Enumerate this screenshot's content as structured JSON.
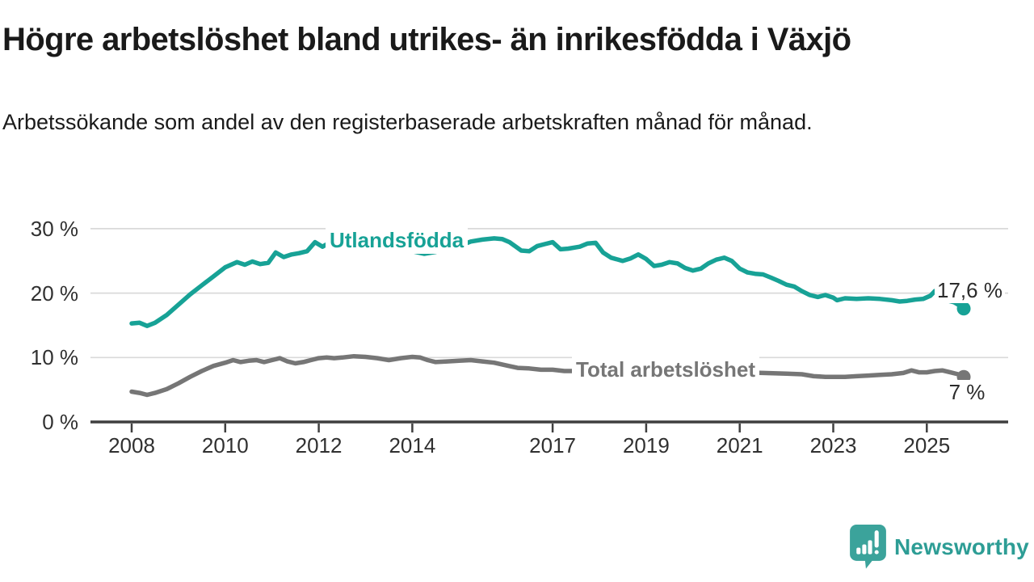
{
  "header": {
    "title": "Högre arbetslöshet bland utrikes- än inrikesfödda i Växjö",
    "subtitle": "Arbetssökande som andel av den registerbaserade arbetskraften månad för månad."
  },
  "branding": {
    "logo_text": "Newsworthy",
    "logo_icon": "newsworthy-speech-bubble-bar-chart-icon"
  },
  "colors": {
    "series_utlandsfodda": "#17a296",
    "series_total": "#767676",
    "grid": "#d9d9d9",
    "axis": "#3f3f3f",
    "text": "#1a1a1a",
    "tick_text": "#303030",
    "logo": "#2d9d95",
    "background": "#ffffff"
  },
  "chart_data": {
    "type": "line",
    "title": "Högre arbetslöshet bland utrikes- än inrikesfödda i Växjö",
    "subtitle": "Arbetssökande som andel av den registerbaserade arbetskraften månad för månad.",
    "unit": "%",
    "grid": true,
    "legend_position": "inline-labels",
    "x_axis": {
      "ticks": [
        2008,
        2010,
        2012,
        2014,
        2017,
        2019,
        2021,
        2023,
        2025
      ],
      "range_years": [
        2008.0,
        2026.7
      ]
    },
    "y_axis": {
      "range": [
        0,
        32
      ],
      "ticks": [
        {
          "value": 30,
          "label": "30 %"
        },
        {
          "value": 20,
          "label": "20 %"
        },
        {
          "value": 10,
          "label": "10 %"
        },
        {
          "value": 0,
          "label": "0 %"
        }
      ]
    },
    "series": [
      {
        "name": "Utlandsfödda",
        "color": "#17a296",
        "end_value": 17.6,
        "end_label": "17,6 %",
        "points": [
          [
            2008.0,
            15.3
          ],
          [
            2008.17,
            15.4
          ],
          [
            2008.33,
            14.9
          ],
          [
            2008.5,
            15.4
          ],
          [
            2008.75,
            16.6
          ],
          [
            2009.0,
            18.2
          ],
          [
            2009.25,
            19.8
          ],
          [
            2009.5,
            21.2
          ],
          [
            2009.75,
            22.6
          ],
          [
            2010.0,
            24.0
          ],
          [
            2010.25,
            24.8
          ],
          [
            2010.42,
            24.4
          ],
          [
            2010.58,
            24.9
          ],
          [
            2010.75,
            24.5
          ],
          [
            2010.92,
            24.7
          ],
          [
            2011.08,
            26.3
          ],
          [
            2011.25,
            25.6
          ],
          [
            2011.42,
            26.0
          ],
          [
            2011.58,
            26.2
          ],
          [
            2011.75,
            26.5
          ],
          [
            2011.92,
            27.9
          ],
          [
            2012.08,
            27.2
          ],
          [
            2012.25,
            27.9
          ],
          [
            2012.5,
            27.8
          ],
          [
            2012.75,
            28.1
          ],
          [
            2013.0,
            27.7
          ],
          [
            2013.25,
            27.9
          ],
          [
            2013.5,
            27.5
          ],
          [
            2013.75,
            27.0
          ],
          [
            2014.0,
            26.5
          ],
          [
            2014.25,
            26.1
          ],
          [
            2014.5,
            26.4
          ],
          [
            2014.75,
            27.0
          ],
          [
            2015.0,
            27.3
          ],
          [
            2015.25,
            28.0
          ],
          [
            2015.5,
            28.3
          ],
          [
            2015.75,
            28.5
          ],
          [
            2015.92,
            28.4
          ],
          [
            2016.08,
            27.9
          ],
          [
            2016.33,
            26.6
          ],
          [
            2016.5,
            26.5
          ],
          [
            2016.67,
            27.3
          ],
          [
            2016.83,
            27.6
          ],
          [
            2017.0,
            27.9
          ],
          [
            2017.17,
            26.8
          ],
          [
            2017.33,
            26.9
          ],
          [
            2017.58,
            27.2
          ],
          [
            2017.75,
            27.7
          ],
          [
            2017.92,
            27.8
          ],
          [
            2018.08,
            26.3
          ],
          [
            2018.25,
            25.5
          ],
          [
            2018.5,
            25.0
          ],
          [
            2018.67,
            25.4
          ],
          [
            2018.83,
            26.0
          ],
          [
            2019.0,
            25.3
          ],
          [
            2019.17,
            24.2
          ],
          [
            2019.33,
            24.4
          ],
          [
            2019.5,
            24.8
          ],
          [
            2019.67,
            24.6
          ],
          [
            2019.83,
            23.9
          ],
          [
            2020.0,
            23.5
          ],
          [
            2020.17,
            23.8
          ],
          [
            2020.33,
            24.6
          ],
          [
            2020.5,
            25.2
          ],
          [
            2020.67,
            25.5
          ],
          [
            2020.83,
            25.0
          ],
          [
            2021.0,
            23.8
          ],
          [
            2021.17,
            23.2
          ],
          [
            2021.33,
            23.0
          ],
          [
            2021.5,
            22.9
          ],
          [
            2021.67,
            22.4
          ],
          [
            2021.83,
            21.9
          ],
          [
            2022.0,
            21.3
          ],
          [
            2022.17,
            21.0
          ],
          [
            2022.33,
            20.3
          ],
          [
            2022.5,
            19.7
          ],
          [
            2022.67,
            19.4
          ],
          [
            2022.83,
            19.7
          ],
          [
            2023.0,
            19.3
          ],
          [
            2023.08,
            18.9
          ],
          [
            2023.25,
            19.2
          ],
          [
            2023.5,
            19.1
          ],
          [
            2023.75,
            19.2
          ],
          [
            2024.0,
            19.1
          ],
          [
            2024.25,
            18.9
          ],
          [
            2024.42,
            18.7
          ],
          [
            2024.58,
            18.8
          ],
          [
            2024.75,
            19.0
          ],
          [
            2024.92,
            19.1
          ],
          [
            2025.08,
            19.6
          ],
          [
            2025.17,
            20.3
          ],
          [
            2025.25,
            20.6
          ],
          [
            2025.33,
            20.1
          ],
          [
            2025.42,
            18.9
          ],
          [
            2025.58,
            18.6
          ],
          [
            2025.67,
            18.2
          ],
          [
            2025.79,
            17.6
          ]
        ]
      },
      {
        "name": "Total arbetslöshet",
        "color": "#767676",
        "end_value": 7.0,
        "end_label": "7 %",
        "points": [
          [
            2008.0,
            4.7
          ],
          [
            2008.17,
            4.5
          ],
          [
            2008.33,
            4.2
          ],
          [
            2008.5,
            4.5
          ],
          [
            2008.75,
            5.1
          ],
          [
            2009.0,
            6.0
          ],
          [
            2009.25,
            7.0
          ],
          [
            2009.5,
            7.9
          ],
          [
            2009.75,
            8.7
          ],
          [
            2010.0,
            9.2
          ],
          [
            2010.17,
            9.6
          ],
          [
            2010.33,
            9.3
          ],
          [
            2010.5,
            9.5
          ],
          [
            2010.67,
            9.6
          ],
          [
            2010.83,
            9.3
          ],
          [
            2011.0,
            9.6
          ],
          [
            2011.17,
            9.9
          ],
          [
            2011.33,
            9.4
          ],
          [
            2011.5,
            9.1
          ],
          [
            2011.67,
            9.3
          ],
          [
            2011.83,
            9.6
          ],
          [
            2012.0,
            9.9
          ],
          [
            2012.17,
            10.0
          ],
          [
            2012.33,
            9.9
          ],
          [
            2012.5,
            10.0
          ],
          [
            2012.75,
            10.2
          ],
          [
            2013.0,
            10.1
          ],
          [
            2013.25,
            9.9
          ],
          [
            2013.5,
            9.6
          ],
          [
            2013.75,
            9.9
          ],
          [
            2014.0,
            10.1
          ],
          [
            2014.17,
            10.0
          ],
          [
            2014.33,
            9.6
          ],
          [
            2014.5,
            9.3
          ],
          [
            2014.75,
            9.4
          ],
          [
            2015.0,
            9.5
          ],
          [
            2015.25,
            9.6
          ],
          [
            2015.5,
            9.4
          ],
          [
            2015.75,
            9.2
          ],
          [
            2016.0,
            8.8
          ],
          [
            2016.25,
            8.4
          ],
          [
            2016.5,
            8.3
          ],
          [
            2016.75,
            8.1
          ],
          [
            2017.0,
            8.1
          ],
          [
            2017.25,
            7.9
          ],
          [
            2017.5,
            7.9
          ],
          [
            2018.0,
            7.8
          ],
          [
            2018.5,
            7.7
          ],
          [
            2019.0,
            7.7
          ],
          [
            2019.5,
            7.6
          ],
          [
            2020.0,
            7.8
          ],
          [
            2020.5,
            7.8
          ],
          [
            2021.0,
            7.7
          ],
          [
            2021.5,
            7.6
          ],
          [
            2022.0,
            7.5
          ],
          [
            2022.33,
            7.4
          ],
          [
            2022.58,
            7.1
          ],
          [
            2022.83,
            7.0
          ],
          [
            2023.0,
            7.0
          ],
          [
            2023.25,
            7.0
          ],
          [
            2023.5,
            7.1
          ],
          [
            2023.75,
            7.2
          ],
          [
            2024.0,
            7.3
          ],
          [
            2024.25,
            7.4
          ],
          [
            2024.5,
            7.6
          ],
          [
            2024.67,
            8.0
          ],
          [
            2024.83,
            7.7
          ],
          [
            2025.0,
            7.7
          ],
          [
            2025.17,
            7.9
          ],
          [
            2025.33,
            8.0
          ],
          [
            2025.5,
            7.7
          ],
          [
            2025.67,
            7.4
          ],
          [
            2025.79,
            7.0
          ]
        ]
      }
    ]
  }
}
